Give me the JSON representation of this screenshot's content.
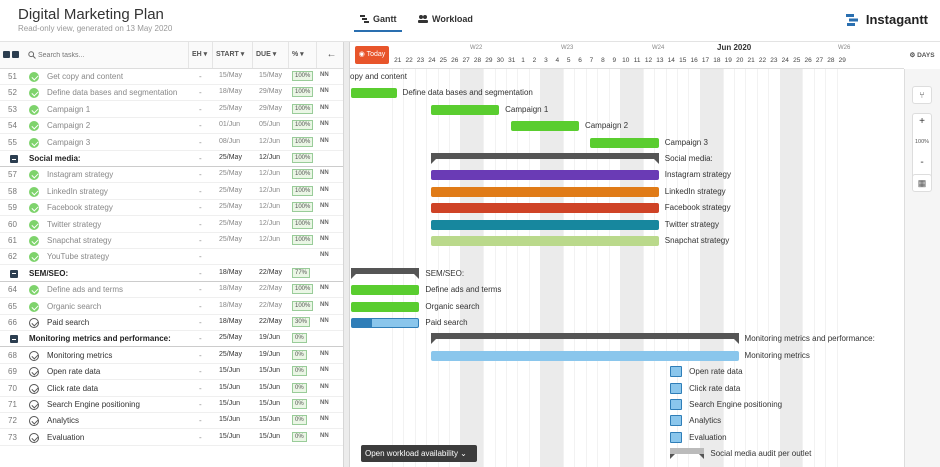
{
  "header": {
    "title": "Digital Marketing Plan",
    "subtitle": "Read-only view, generated on 13 May 2020",
    "tabs": [
      {
        "label": "Gantt"
      },
      {
        "label": "Workload"
      }
    ],
    "brand": "Instagantt"
  },
  "table": {
    "search_placeholder": "Search tasks...",
    "columns": {
      "eh": "EH",
      "start": "START",
      "due": "DUE",
      "pct": "%"
    }
  },
  "rows": [
    {
      "num": "51",
      "title": "Get copy and content",
      "eh": "-",
      "start": "15/May",
      "due": "15/May",
      "pct": "100%",
      "nn": "NN",
      "type": "done"
    },
    {
      "num": "52",
      "title": "Define data bases and segmentation",
      "eh": "-",
      "start": "18/May",
      "due": "29/May",
      "pct": "100%",
      "nn": "NN",
      "type": "done"
    },
    {
      "num": "53",
      "title": "Campaign 1",
      "eh": "-",
      "start": "25/May",
      "due": "29/May",
      "pct": "100%",
      "nn": "NN",
      "type": "done"
    },
    {
      "num": "54",
      "title": "Campaign 2",
      "eh": "-",
      "start": "01/Jun",
      "due": "05/Jun",
      "pct": "100%",
      "nn": "NN",
      "type": "done"
    },
    {
      "num": "55",
      "title": "Campaign 3",
      "eh": "-",
      "start": "08/Jun",
      "due": "12/Jun",
      "pct": "100%",
      "nn": "NN",
      "type": "done"
    },
    {
      "num": "",
      "title": "Social media:",
      "eh": "-",
      "start": "25/May",
      "due": "12/Jun",
      "pct": "100%",
      "nn": "",
      "type": "group"
    },
    {
      "num": "57",
      "title": "Instagram strategy",
      "eh": "-",
      "start": "25/May",
      "due": "12/Jun",
      "pct": "100%",
      "nn": "NN",
      "type": "done"
    },
    {
      "num": "58",
      "title": "LinkedIn strategy",
      "eh": "-",
      "start": "25/May",
      "due": "12/Jun",
      "pct": "100%",
      "nn": "NN",
      "type": "done"
    },
    {
      "num": "59",
      "title": "Facebook strategy",
      "eh": "-",
      "start": "25/May",
      "due": "12/Jun",
      "pct": "100%",
      "nn": "NN",
      "type": "done"
    },
    {
      "num": "60",
      "title": "Twitter strategy",
      "eh": "-",
      "start": "25/May",
      "due": "12/Jun",
      "pct": "100%",
      "nn": "NN",
      "type": "done"
    },
    {
      "num": "61",
      "title": "Snapchat strategy",
      "eh": "-",
      "start": "25/May",
      "due": "12/Jun",
      "pct": "100%",
      "nn": "NN",
      "type": "done"
    },
    {
      "num": "62",
      "title": "YouTube strategy",
      "eh": "-",
      "start": "",
      "due": "",
      "pct": "",
      "nn": "NN",
      "type": "done"
    },
    {
      "num": "",
      "title": "SEM/SEO:",
      "eh": "-",
      "start": "18/May",
      "due": "22/May",
      "pct": "77%",
      "nn": "",
      "type": "group"
    },
    {
      "num": "64",
      "title": "Define ads and terms",
      "eh": "-",
      "start": "18/May",
      "due": "22/May",
      "pct": "100%",
      "nn": "NN",
      "type": "done"
    },
    {
      "num": "65",
      "title": "Organic search",
      "eh": "-",
      "start": "18/May",
      "due": "22/May",
      "pct": "100%",
      "nn": "NN",
      "type": "done"
    },
    {
      "num": "66",
      "title": "Paid search",
      "eh": "-",
      "start": "18/May",
      "due": "22/May",
      "pct": "30%",
      "nn": "NN",
      "type": "open"
    },
    {
      "num": "",
      "title": "Monitoring metrics and performance:",
      "eh": "-",
      "start": "25/May",
      "due": "19/Jun",
      "pct": "0%",
      "nn": "",
      "type": "group"
    },
    {
      "num": "68",
      "title": "Monitoring metrics",
      "eh": "-",
      "start": "25/May",
      "due": "19/Jun",
      "pct": "0%",
      "nn": "NN",
      "type": "open"
    },
    {
      "num": "69",
      "title": "Open rate data",
      "eh": "-",
      "start": "15/Jun",
      "due": "15/Jun",
      "pct": "0%",
      "nn": "NN",
      "type": "open"
    },
    {
      "num": "70",
      "title": "Click rate data",
      "eh": "-",
      "start": "15/Jun",
      "due": "15/Jun",
      "pct": "0%",
      "nn": "NN",
      "type": "open"
    },
    {
      "num": "71",
      "title": "Search Engine positioning",
      "eh": "-",
      "start": "15/Jun",
      "due": "15/Jun",
      "pct": "0%",
      "nn": "NN",
      "type": "open"
    },
    {
      "num": "72",
      "title": "Analytics",
      "eh": "-",
      "start": "15/Jun",
      "due": "15/Jun",
      "pct": "0%",
      "nn": "NN",
      "type": "open"
    },
    {
      "num": "73",
      "title": "Evaluation",
      "eh": "-",
      "start": "15/Jun",
      "due": "15/Jun",
      "pct": "0%",
      "nn": "NN",
      "type": "open"
    }
  ],
  "timeline": {
    "today_label": "Today",
    "month_label": "Jun 2020",
    "weeks": [
      "W22",
      "W23",
      "W24",
      "W26"
    ],
    "days": [
      "21",
      "22",
      "23",
      "24",
      "25",
      "26",
      "27",
      "28",
      "29",
      "30",
      "31",
      "1",
      "2",
      "3",
      "4",
      "5",
      "6",
      "7",
      "8",
      "9",
      "10",
      "11",
      "12",
      "13",
      "14",
      "15",
      "16",
      "17",
      "18",
      "19",
      "20",
      "21",
      "22",
      "23",
      "24",
      "25",
      "26",
      "27",
      "28",
      "29"
    ]
  },
  "bars": [
    {
      "label": "opy and content",
      "type": "none",
      "start": 0,
      "end": 0,
      "color": ""
    },
    {
      "label": "Define data bases and segmentation",
      "type": "bar",
      "start": 0,
      "end": 3,
      "color": "#5acd2f"
    },
    {
      "label": "Campaign 1",
      "type": "bar",
      "start": 7,
      "end": 12,
      "color": "#5acd2f"
    },
    {
      "label": "Campaign 2",
      "type": "bar",
      "start": 14,
      "end": 19,
      "color": "#5acd2f"
    },
    {
      "label": "Campaign 3",
      "type": "bar",
      "start": 21,
      "end": 26,
      "color": "#5acd2f"
    },
    {
      "label": "Social media:",
      "type": "group",
      "start": 7,
      "end": 26,
      "color": "#555"
    },
    {
      "label": "Instagram strategy",
      "type": "bar",
      "start": 7,
      "end": 26,
      "color": "#6a3bb5"
    },
    {
      "label": "LinkedIn strategy",
      "type": "bar",
      "start": 7,
      "end": 26,
      "color": "#e07b17"
    },
    {
      "label": "Facebook strategy",
      "type": "bar",
      "start": 7,
      "end": 26,
      "color": "#cf4326"
    },
    {
      "label": "Twitter strategy",
      "type": "bar",
      "start": 7,
      "end": 26,
      "color": "#17879e"
    },
    {
      "label": "Snapchat strategy",
      "type": "bar",
      "start": 7,
      "end": 26,
      "color": "#bad98b"
    },
    {
      "label": "",
      "type": "none",
      "start": 0,
      "end": 0,
      "color": ""
    },
    {
      "label": "SEM/SEO:",
      "type": "group",
      "start": 0,
      "end": 5,
      "color": "#555"
    },
    {
      "label": "Define ads and terms",
      "type": "bar",
      "start": 0,
      "end": 5,
      "color": "#5acd2f"
    },
    {
      "label": "Organic search",
      "type": "bar",
      "start": 0,
      "end": 5,
      "color": "#5acd2f"
    },
    {
      "label": "Paid search",
      "type": "progress",
      "start": 0,
      "end": 5,
      "color": "#8ac6ec",
      "progress": 0.3
    },
    {
      "label": "Monitoring metrics and performance:",
      "type": "group",
      "start": 7,
      "end": 33,
      "color": "#555"
    },
    {
      "label": "Monitoring metrics",
      "type": "bar",
      "start": 7,
      "end": 33,
      "color": "#8ac6ec"
    },
    {
      "label": "Open rate data",
      "type": "square",
      "start": 28,
      "end": 29,
      "color": "#8ac6ec"
    },
    {
      "label": "Click rate data",
      "type": "square",
      "start": 28,
      "end": 29,
      "color": "#8ac6ec"
    },
    {
      "label": "Search Engine positioning",
      "type": "square",
      "start": 28,
      "end": 29,
      "color": "#8ac6ec"
    },
    {
      "label": "Analytics",
      "type": "square",
      "start": 28,
      "end": 29,
      "color": "#8ac6ec"
    },
    {
      "label": "Evaluation",
      "type": "square",
      "start": 28,
      "end": 29,
      "color": "#8ac6ec"
    },
    {
      "label": "Social media audit per outlet",
      "type": "group",
      "start": 28,
      "end": 30,
      "color": "#bbb"
    }
  ],
  "sidebar": {
    "days_label": "DAYS",
    "zoom_level": "100%"
  },
  "footer": {
    "workload_label": "Open workload availability"
  }
}
